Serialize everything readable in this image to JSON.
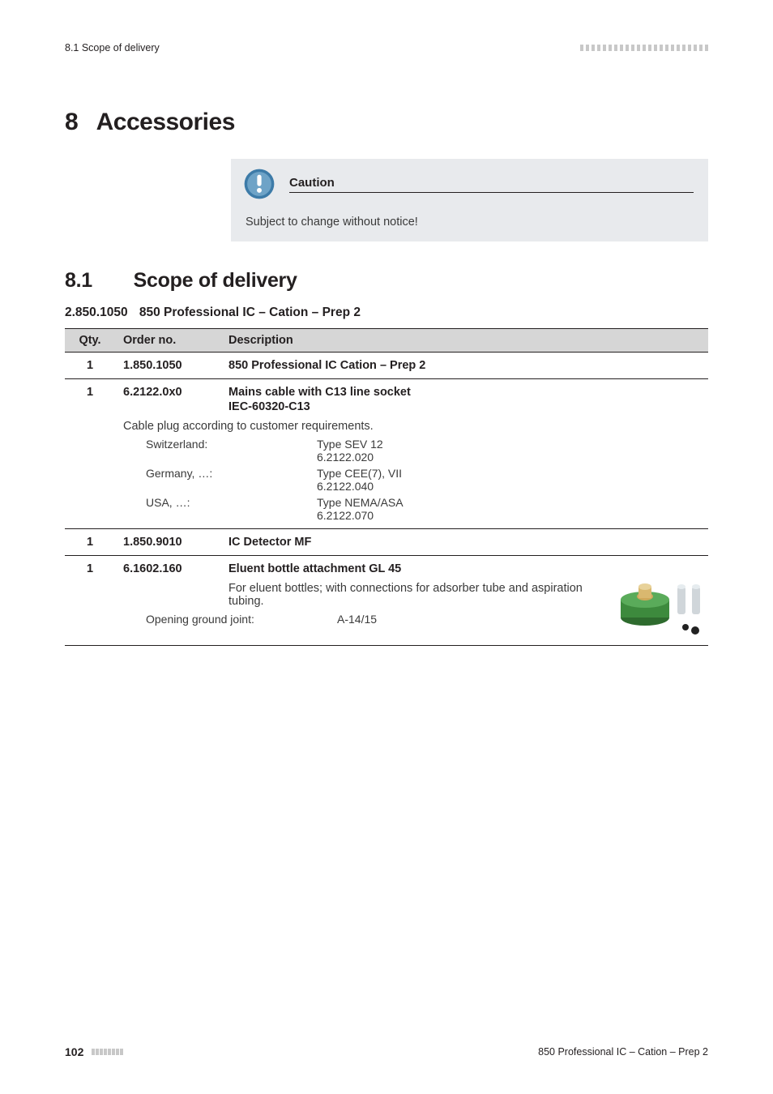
{
  "header": {
    "left": "8.1 Scope of delivery",
    "tick_count": 23,
    "tick_color": "#c8c8c8"
  },
  "chapter": {
    "number": "8",
    "title": "Accessories"
  },
  "callout": {
    "title": "Caution",
    "body": "Subject to change without notice!",
    "icon": {
      "ring_fill": "#3d7ba8",
      "inner_fill": "#ffffff"
    }
  },
  "section": {
    "number": "8.1",
    "title": "Scope of delivery"
  },
  "subsection": {
    "partno": "2.850.1050",
    "title": "850 Professional IC – Cation – Prep 2"
  },
  "table": {
    "headers": {
      "qty": "Qty.",
      "order": "Order no.",
      "desc": "Description"
    },
    "rows": [
      {
        "qty": "1",
        "order": "1.850.1050",
        "title": "850 Professional IC Cation – Prep 2"
      },
      {
        "qty": "1",
        "order": "6.2122.0x0",
        "title": "Mains cable with C13 line socket",
        "subtitle": "IEC-60320-C13",
        "note": "Cable plug according to customer requirements.",
        "specs": [
          {
            "label": "Switzerland:",
            "lines": [
              "Type SEV 12",
              "6.2122.020"
            ]
          },
          {
            "label": "Germany, …:",
            "lines": [
              "Type CEE(7), VII",
              "6.2122.040"
            ]
          },
          {
            "label": "USA, …:",
            "lines": [
              "Type NEMA/ASA",
              "6.2122.070"
            ]
          }
        ]
      },
      {
        "qty": "1",
        "order": "1.850.9010",
        "title": "IC Detector MF"
      },
      {
        "qty": "1",
        "order": "6.1602.160",
        "title": "Eluent bottle attachment GL 45",
        "note": "For eluent bottles; with connections for adsorber tube and aspiration tubing.",
        "specs": [
          {
            "label": "Opening ground joint:",
            "lines": [
              "A-14/15"
            ]
          }
        ],
        "has_image": true
      }
    ]
  },
  "footer": {
    "page": "102",
    "tick_count": 8,
    "tick_color": "#c8c8c8",
    "right": "850 Professional IC – Cation – Prep 2"
  },
  "colors": {
    "text": "#231f20",
    "muted": "#3a3a3a",
    "rule": "#231f20",
    "th_bg": "#d6d6d6",
    "callout_bg": "#e8eaed"
  }
}
